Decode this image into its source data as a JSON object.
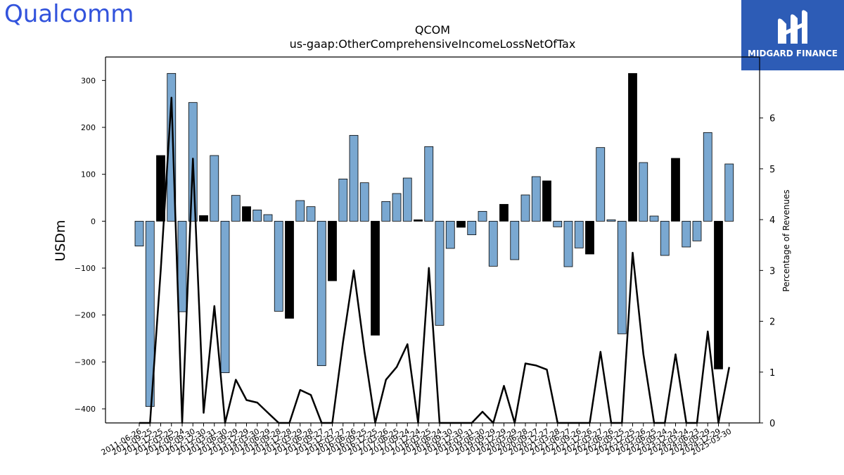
{
  "header": {
    "left_logo_text": "Qualcomm",
    "right_logo_text": "MIDGARD FINANCE"
  },
  "colors": {
    "bar_default": "#7aa8d1",
    "bar_highlight": "#000000",
    "line": "#000000",
    "logo_blue": "#3253dc",
    "badge_bg": "#2d5cb6"
  },
  "chart_data": {
    "type": "bar",
    "title": "QCOM",
    "subtitle": "us-gaap:OtherComprehensiveIncomeLossNetOfTax",
    "ylabel": "USDm",
    "y2label": "Percentage of Revenues",
    "ylim": [
      -430,
      350
    ],
    "y2lim": [
      0,
      7.2
    ],
    "yticks": [
      -400,
      -300,
      -200,
      -100,
      0,
      100,
      200,
      300
    ],
    "y2ticks": [
      0,
      1,
      2,
      3,
      4,
      5,
      6
    ],
    "categories": [
      "2011-06-26",
      "2011-09-25",
      "2011-12-25",
      "2012-03-25",
      "2012-06-24",
      "2012-09-30",
      "2012-12-30",
      "2013-03-31",
      "2013-06-30",
      "2013-09-29",
      "2013-12-29",
      "2014-03-30",
      "2014-06-29",
      "2014-09-28",
      "2014-12-28",
      "2015-03-29",
      "2015-06-28",
      "2015-09-27",
      "2015-12-27",
      "2016-03-27",
      "2016-06-26",
      "2016-09-25",
      "2016-12-25",
      "2017-03-26",
      "2017-06-25",
      "2017-09-24",
      "2017-12-24",
      "2018-03-25",
      "2018-06-24",
      "2018-09-30",
      "2018-12-30",
      "2019-03-31",
      "2019-06-30",
      "2019-09-29",
      "2019-12-29",
      "2020-03-29",
      "2020-06-28",
      "2020-09-27",
      "2020-12-27",
      "2021-03-28",
      "2021-06-27",
      "2021-09-26",
      "2021-12-26",
      "2022-03-27",
      "2022-06-26",
      "2022-09-25",
      "2022-12-25",
      "2023-03-26",
      "2023-06-25",
      "2023-09-24",
      "2023-12-24",
      "2024-03-24",
      "2024-06-23",
      "2024-09-29",
      "2024-12-29",
      "2025-03-30"
    ],
    "tick_labels": [
      "2011-06-26",
      "2011-09-25",
      "2011-12-25",
      "2012-03-25",
      "2012-06-24",
      "2012-09-30",
      "2012-12-30",
      "2013-03-31",
      "2013-06-30",
      "2013-09-29",
      "2013-12-29",
      "2014-03-30",
      "2014-06-29",
      "2014-09-28",
      "2014-12-28",
      "2015-03-29",
      "2015-06-28",
      "2015-09-27",
      "2015-12-27",
      "2016-03-27",
      "2016-06-26",
      "2016-09-25",
      "2016-12-25",
      "2017-03-26",
      "2017-06-25",
      "2017-09-24",
      "2017-12-24",
      "2018-03-25",
      "2018-06-24",
      "2018-09-30",
      "2018-12-30",
      "2019-03-31",
      "2019-06-30",
      "2019-09-29",
      "2019-12-29",
      "2020-03-29",
      "2020-06-28",
      "2020-09-27",
      "2020-12-27",
      "2021-03-28",
      "2021-06-27",
      "2021-09-26",
      "2021-12-26",
      "2022-03-27",
      "2022-06-26",
      "2022-09-25",
      "2022-12-25",
      "2023-03-26",
      "2023-06-25",
      "2023-09-24",
      "2023-12-24",
      "2024-03-24",
      "2024-06-23",
      "2024-09-29",
      "2024-12-29",
      "2025-03-30"
    ],
    "values": [
      -53,
      -395,
      140,
      315,
      -193,
      253,
      12,
      140,
      -323,
      55,
      31,
      24,
      14,
      -192,
      -207,
      44,
      31,
      -308,
      -127,
      90,
      183,
      82,
      -243,
      42,
      59,
      92,
      3,
      159,
      -222,
      -58,
      -13,
      -29,
      21,
      -96,
      36,
      -82,
      56,
      95,
      86,
      -12,
      -97,
      -57,
      -70,
      157,
      3,
      -240,
      315,
      125,
      11,
      -73,
      134,
      -55,
      -42,
      189,
      -315,
      122
    ],
    "highlight": [
      false,
      false,
      true,
      false,
      false,
      false,
      true,
      false,
      false,
      false,
      true,
      false,
      false,
      false,
      true,
      false,
      false,
      false,
      true,
      false,
      false,
      false,
      true,
      false,
      false,
      false,
      true,
      false,
      false,
      false,
      true,
      false,
      false,
      false,
      true,
      false,
      false,
      false,
      true,
      false,
      false,
      false,
      true,
      false,
      false,
      false,
      true,
      false,
      false,
      false,
      true,
      false,
      false,
      false,
      true,
      false
    ],
    "line_pct": [
      0,
      0,
      3.0,
      6.4,
      0,
      5.2,
      0.2,
      2.3,
      0,
      0.85,
      0.45,
      0.4,
      0.2,
      0,
      0,
      0.65,
      0.55,
      0,
      0,
      1.6,
      3.0,
      1.4,
      0,
      0.85,
      1.1,
      1.55,
      0,
      3.05,
      0,
      0,
      0,
      0,
      0.22,
      0,
      0.73,
      0,
      1.17,
      1.13,
      1.05,
      0,
      0,
      0,
      0,
      1.4,
      0,
      0,
      3.35,
      1.35,
      0,
      0,
      1.35,
      0,
      0,
      1.8,
      0,
      1.1
    ],
    "grid": false
  }
}
